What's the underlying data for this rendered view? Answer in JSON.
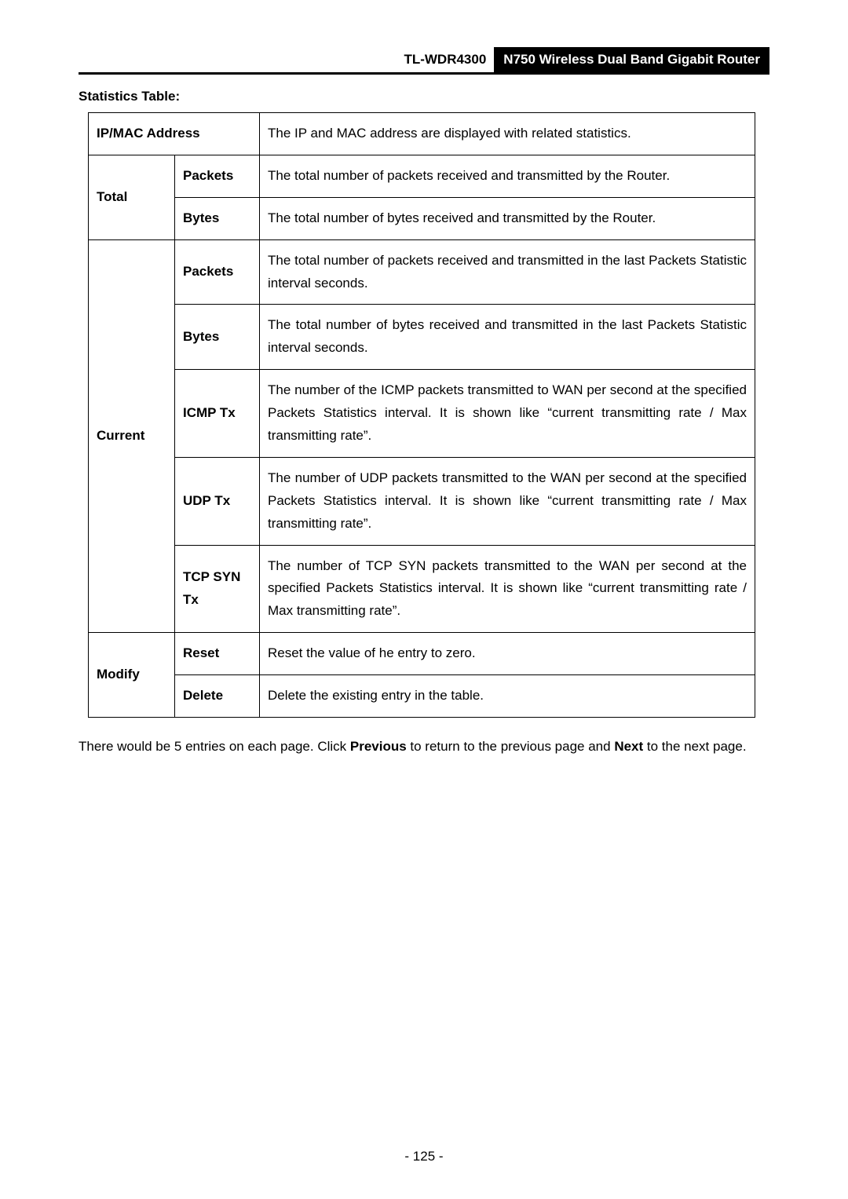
{
  "header": {
    "model": "TL-WDR4300",
    "product": "N750 Wireless Dual Band Gigabit Router"
  },
  "section_title": "Statistics Table:",
  "rows": {
    "ipmac": {
      "label": "IP/MAC Address",
      "desc": "The IP and MAC address are displayed with related statistics."
    },
    "total": {
      "label": "Total",
      "packets": {
        "label": "Packets",
        "desc": "The total number of packets received and transmitted by the Router."
      },
      "bytes": {
        "label": "Bytes",
        "desc": "The total number of bytes received and transmitted by the Router."
      }
    },
    "current": {
      "label": "Current",
      "packets": {
        "label": "Packets",
        "desc": "The total number of packets received and transmitted in the last Packets Statistic interval seconds."
      },
      "bytes": {
        "label": "Bytes",
        "desc": "The total number of bytes received and transmitted in the last Packets Statistic interval seconds."
      },
      "icmp": {
        "label": "ICMP Tx",
        "desc": "The number of the ICMP packets transmitted to WAN per second at the specified Packets Statistics interval. It is shown like “current transmitting rate / Max transmitting rate”."
      },
      "udp": {
        "label": "UDP Tx",
        "desc": "The number of UDP packets transmitted to the WAN per second at the specified Packets Statistics interval. It is shown like “current transmitting rate / Max transmitting rate”."
      },
      "tcp": {
        "label": "TCP SYN Tx",
        "desc": "The number of TCP SYN packets transmitted to the WAN per second at the specified Packets Statistics interval. It is shown like “current transmitting rate / Max transmitting rate”."
      }
    },
    "modify": {
      "label": "Modify",
      "reset": {
        "label": "Reset",
        "desc": "Reset the value of he entry to zero."
      },
      "delete": {
        "label": "Delete",
        "desc": "Delete the existing entry in the table."
      }
    }
  },
  "footer": {
    "pre": "There would be 5 entries on each page. Click ",
    "b1": "Previous",
    "mid": " to return to the previous page and ",
    "b2": "Next",
    "post": " to the next page."
  },
  "page_number": "- 125 -"
}
